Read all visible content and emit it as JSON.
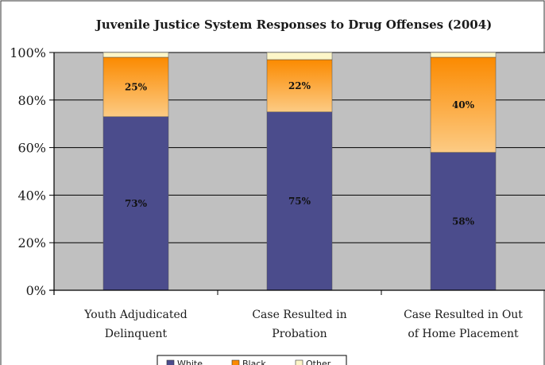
{
  "chart_data": {
    "type": "bar",
    "stacked": true,
    "title": "Juvenile Justice System Responses to Drug Offenses (2004)",
    "categories": [
      [
        "Youth Adjudicated",
        "Delinquent"
      ],
      [
        "Case Resulted in",
        "Probation"
      ],
      [
        "Case Resulted in Out",
        "of Home Placement"
      ]
    ],
    "series": [
      {
        "name": "White",
        "values": [
          73,
          75,
          58
        ],
        "labels": [
          "73%",
          "75%",
          "58%"
        ]
      },
      {
        "name": "Black",
        "values": [
          25,
          22,
          40
        ],
        "labels": [
          "25%",
          "22%",
          "40%"
        ]
      },
      {
        "name": "Other",
        "values": [
          2,
          3,
          2
        ],
        "labels": [
          "",
          "",
          ""
        ]
      }
    ],
    "colors": {
      "White": "#4b4c8c",
      "Black_top": "#fb8a00",
      "Black_bottom": "#fccb84",
      "Other": "#fdf6c8",
      "plot_background": "#c0c0c0",
      "gridline": "#000000"
    },
    "ylim": [
      0,
      100
    ],
    "yticks": [
      "0%",
      "20%",
      "40%",
      "60%",
      "80%",
      "100%"
    ],
    "ytick_values": [
      0,
      20,
      40,
      60,
      80,
      100
    ],
    "grid": true,
    "legend_position": "bottom"
  }
}
